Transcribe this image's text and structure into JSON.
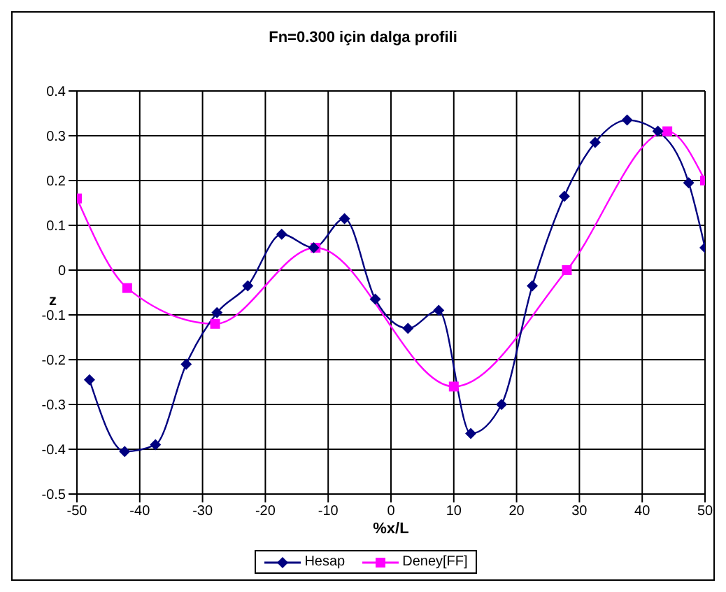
{
  "chart_data": {
    "type": "line",
    "title": "Fn=0.300 için dalga profili",
    "xlabel": "%x/L",
    "ylabel": "z",
    "xlim": [
      -50,
      50
    ],
    "xticks": [
      -50,
      -40,
      -30,
      -20,
      -10,
      0,
      10,
      20,
      30,
      40,
      50
    ],
    "ylim": [
      -0.5,
      0.4
    ],
    "yticks": [
      -0.5,
      -0.4,
      -0.3,
      -0.2,
      -0.1,
      0,
      0.1,
      0.2,
      0.3,
      0.4
    ],
    "grid": true,
    "legend": "bottom",
    "series": [
      {
        "name": "Hesap",
        "color": "#000080",
        "marker": "diamond",
        "x": [
          -48,
          -42.4,
          -37.5,
          -32.6,
          -27.7,
          -22.8,
          -17.4,
          -12.3,
          -7.4,
          -2.5,
          2.7,
          7.6,
          12.7,
          17.6,
          22.5,
          27.6,
          32.5,
          37.6,
          42.5,
          47.4,
          50
        ],
        "values": [
          -0.245,
          -0.405,
          -0.39,
          -0.21,
          -0.095,
          -0.035,
          0.08,
          0.05,
          0.115,
          -0.065,
          -0.13,
          -0.09,
          -0.365,
          -0.3,
          -0.035,
          0.165,
          0.285,
          0.335,
          0.31,
          0.195,
          0.05
        ]
      },
      {
        "name": "Deney[FF]",
        "color": "#ff00ff",
        "marker": "square",
        "x": [
          -50,
          -42,
          -28,
          -12,
          10,
          28,
          44,
          50
        ],
        "values": [
          0.16,
          -0.04,
          -0.12,
          0.05,
          -0.26,
          0,
          0.31,
          0.2
        ]
      }
    ]
  }
}
